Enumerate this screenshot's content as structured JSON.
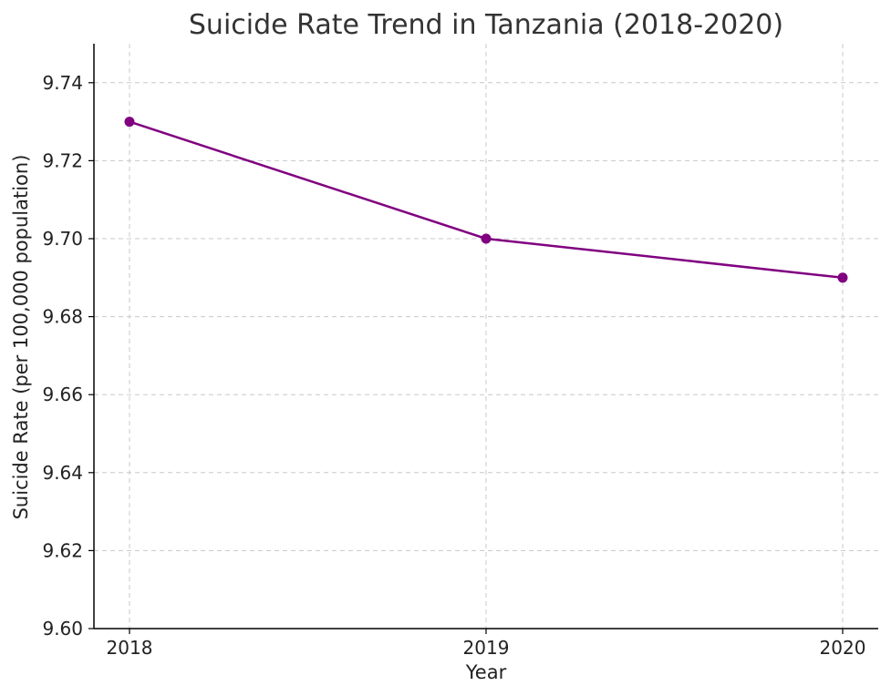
{
  "chart_data": {
    "type": "line",
    "title": "Suicide Rate Trend in Tanzania (2018-2020)",
    "xlabel": "Year",
    "ylabel": "Suicide Rate (per 100,000 population)",
    "categories": [
      "2018",
      "2019",
      "2020"
    ],
    "series": [
      {
        "values": [
          9.73,
          9.7,
          9.69
        ],
        "color": "#800080"
      }
    ],
    "ylim": [
      9.6,
      9.75
    ],
    "yticks": [
      "9.60",
      "9.62",
      "9.64",
      "9.66",
      "9.68",
      "9.70",
      "9.72",
      "9.74"
    ],
    "grid": true,
    "marker": "circle"
  }
}
